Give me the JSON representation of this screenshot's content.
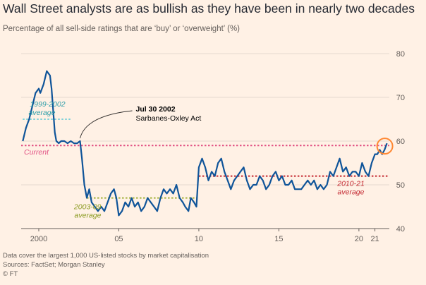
{
  "title": "Wall Street analysts are as bullish as they have been in nearly two decades",
  "subtitle": "Percentage of all sell-side ratings that are ‘buy’ or ‘overweight’ (%)",
  "footnotes": [
    "Data cover the largest 1,000 US-listed stocks by market capitalisation",
    "Sources: FactSet; Morgan Stanley",
    "© FT"
  ],
  "colors": {
    "background": "#fff1e5",
    "series": "#0f5499",
    "current": "#e14f82",
    "avg_1999_2002": "#7ed1d8",
    "avg_2003_09": "#a3b23b",
    "avg_2010_21": "#c3262f",
    "highlight": "#ff8833",
    "grid": "#e6d9ce"
  },
  "chart_data": {
    "type": "line",
    "title": "Wall Street analysts are as bullish as they have been in nearly two decades",
    "ylabel": "Percentage of all sell-side ratings that are ‘buy’ or ‘overweight’ (%)",
    "xlim": [
      1998.9,
      2021.9
    ],
    "ylim": [
      40,
      80
    ],
    "y_ticks": [
      40,
      50,
      60,
      70,
      80
    ],
    "y_axis_side": "right",
    "x_ticks": [
      {
        "value": 2000,
        "label": "2000"
      },
      {
        "value": 2005,
        "label": "05"
      },
      {
        "value": 2010,
        "label": "10"
      },
      {
        "value": 2015,
        "label": "15"
      },
      {
        "value": 2020,
        "label": "20"
      },
      {
        "value": 2021,
        "label": "21"
      }
    ],
    "grid": "horizontal",
    "series": [
      {
        "x": [
          1999.0,
          1999.2,
          1999.4,
          1999.6,
          1999.8,
          2000.0,
          2000.1,
          2000.3,
          2000.5,
          2000.7,
          2000.8,
          2000.9,
          2001.0,
          2001.1,
          2001.25,
          2001.4,
          2001.6,
          2001.8,
          2002.0,
          2002.2,
          2002.4,
          2002.58,
          2002.7,
          2002.85,
          2003.0,
          2003.15,
          2003.3,
          2003.5,
          2003.7,
          2003.9,
          2004.1,
          2004.3,
          2004.5,
          2004.7,
          2004.85,
          2005.0,
          2005.2,
          2005.4,
          2005.6,
          2005.8,
          2006.0,
          2006.2,
          2006.4,
          2006.6,
          2006.8,
          2007.0,
          2007.2,
          2007.4,
          2007.6,
          2007.8,
          2008.0,
          2008.2,
          2008.4,
          2008.6,
          2008.8,
          2009.0,
          2009.15,
          2009.35,
          2009.5,
          2009.7,
          2009.85,
          2010.0,
          2010.2,
          2010.4,
          2010.6,
          2010.8,
          2011.0,
          2011.2,
          2011.4,
          2011.6,
          2011.8,
          2012.0,
          2012.2,
          2012.4,
          2012.6,
          2012.8,
          2013.0,
          2013.2,
          2013.4,
          2013.6,
          2013.8,
          2014.0,
          2014.2,
          2014.4,
          2014.6,
          2014.8,
          2015.0,
          2015.2,
          2015.4,
          2015.6,
          2015.8,
          2016.0,
          2016.2,
          2016.4,
          2016.6,
          2016.8,
          2017.0,
          2017.2,
          2017.4,
          2017.6,
          2017.8,
          2018.0,
          2018.2,
          2018.4,
          2018.6,
          2018.8,
          2019.0,
          2019.2,
          2019.4,
          2019.6,
          2019.8,
          2020.0,
          2020.2,
          2020.4,
          2020.6,
          2020.8,
          2021.0,
          2021.15,
          2021.3,
          2021.45,
          2021.6,
          2021.75
        ],
        "values": [
          60,
          63,
          65,
          68,
          71,
          72,
          71,
          73,
          76,
          75,
          72,
          67,
          62,
          60,
          59.5,
          60,
          60,
          59.5,
          60,
          59.5,
          59.5,
          60,
          56,
          50,
          47,
          49,
          46,
          45,
          44,
          45,
          44,
          46,
          48,
          49,
          47,
          43,
          44,
          46,
          45,
          47,
          45,
          46,
          44,
          45,
          47,
          46,
          45,
          44,
          47,
          49,
          48,
          49,
          48,
          50,
          47,
          46,
          45,
          44,
          47,
          46,
          45,
          54,
          56,
          54,
          51,
          53,
          52,
          55,
          56,
          53,
          51,
          49,
          51,
          52,
          53,
          54,
          51,
          49,
          50,
          50,
          52,
          51,
          49,
          50,
          52,
          53,
          51,
          52,
          50,
          50,
          51,
          49,
          49,
          49,
          50,
          51,
          50,
          51,
          49,
          50,
          49,
          50,
          53,
          52,
          54,
          56,
          53,
          54,
          52,
          53,
          53,
          52,
          55,
          53,
          52,
          55,
          57,
          57,
          58,
          57,
          58,
          59.5
        ]
      }
    ],
    "reference_lines": [
      {
        "label": "Current",
        "y": 59,
        "x": [
          1998.9,
          2021.9
        ]
      },
      {
        "label": "1999-2002 average",
        "y": 65,
        "x": [
          1999,
          2002
        ]
      },
      {
        "label": "2003-09 average",
        "y": 47,
        "x": [
          2003,
          2009.9
        ]
      },
      {
        "label": "2010-21 average",
        "y": 52,
        "x": [
          2010,
          2021.9
        ]
      }
    ],
    "annotations": [
      {
        "title": "Jul 30 2002",
        "text": "Sarbanes-Oxley Act",
        "x": 2002.58,
        "y": 60
      }
    ]
  }
}
